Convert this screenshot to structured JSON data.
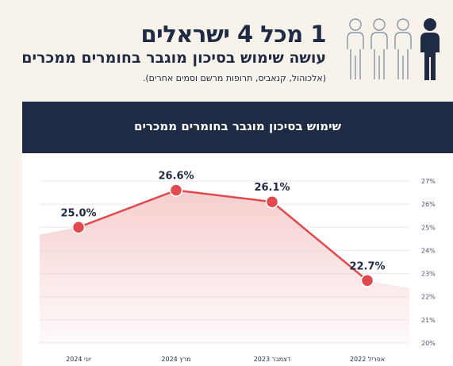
{
  "header": {
    "title": "1 מכל 4 ישראלים",
    "subtitle": "עושה שימוש בסיכון מוגבר בחומרים ממכרים",
    "note": "(אלכוהול, קנאביס, תרופות מרשם וסמים אחרים).",
    "icon": "people-icon"
  },
  "colors": {
    "navy": "#1f2a44",
    "line": "#e04a4f",
    "fill": "#f5c9c9",
    "background": "#f7f2ea"
  },
  "chart_data": {
    "type": "line",
    "title": "שימוש בסיכון מוגבר בחומרים ממכרים",
    "categories": [
      "יוני 2024",
      "מרץ 2024",
      "דצמבר 2023",
      "אפריל 2022"
    ],
    "values": [
      25.0,
      26.6,
      26.1,
      22.7
    ],
    "labels": [
      "25.0%",
      "26.6%",
      "26.1%",
      "22.7%"
    ],
    "yticks": [
      "27%",
      "26%",
      "25%",
      "24%",
      "23%",
      "22%",
      "21%",
      "20%"
    ],
    "ylim": [
      20,
      27
    ],
    "grid": true,
    "area_fill": true
  }
}
